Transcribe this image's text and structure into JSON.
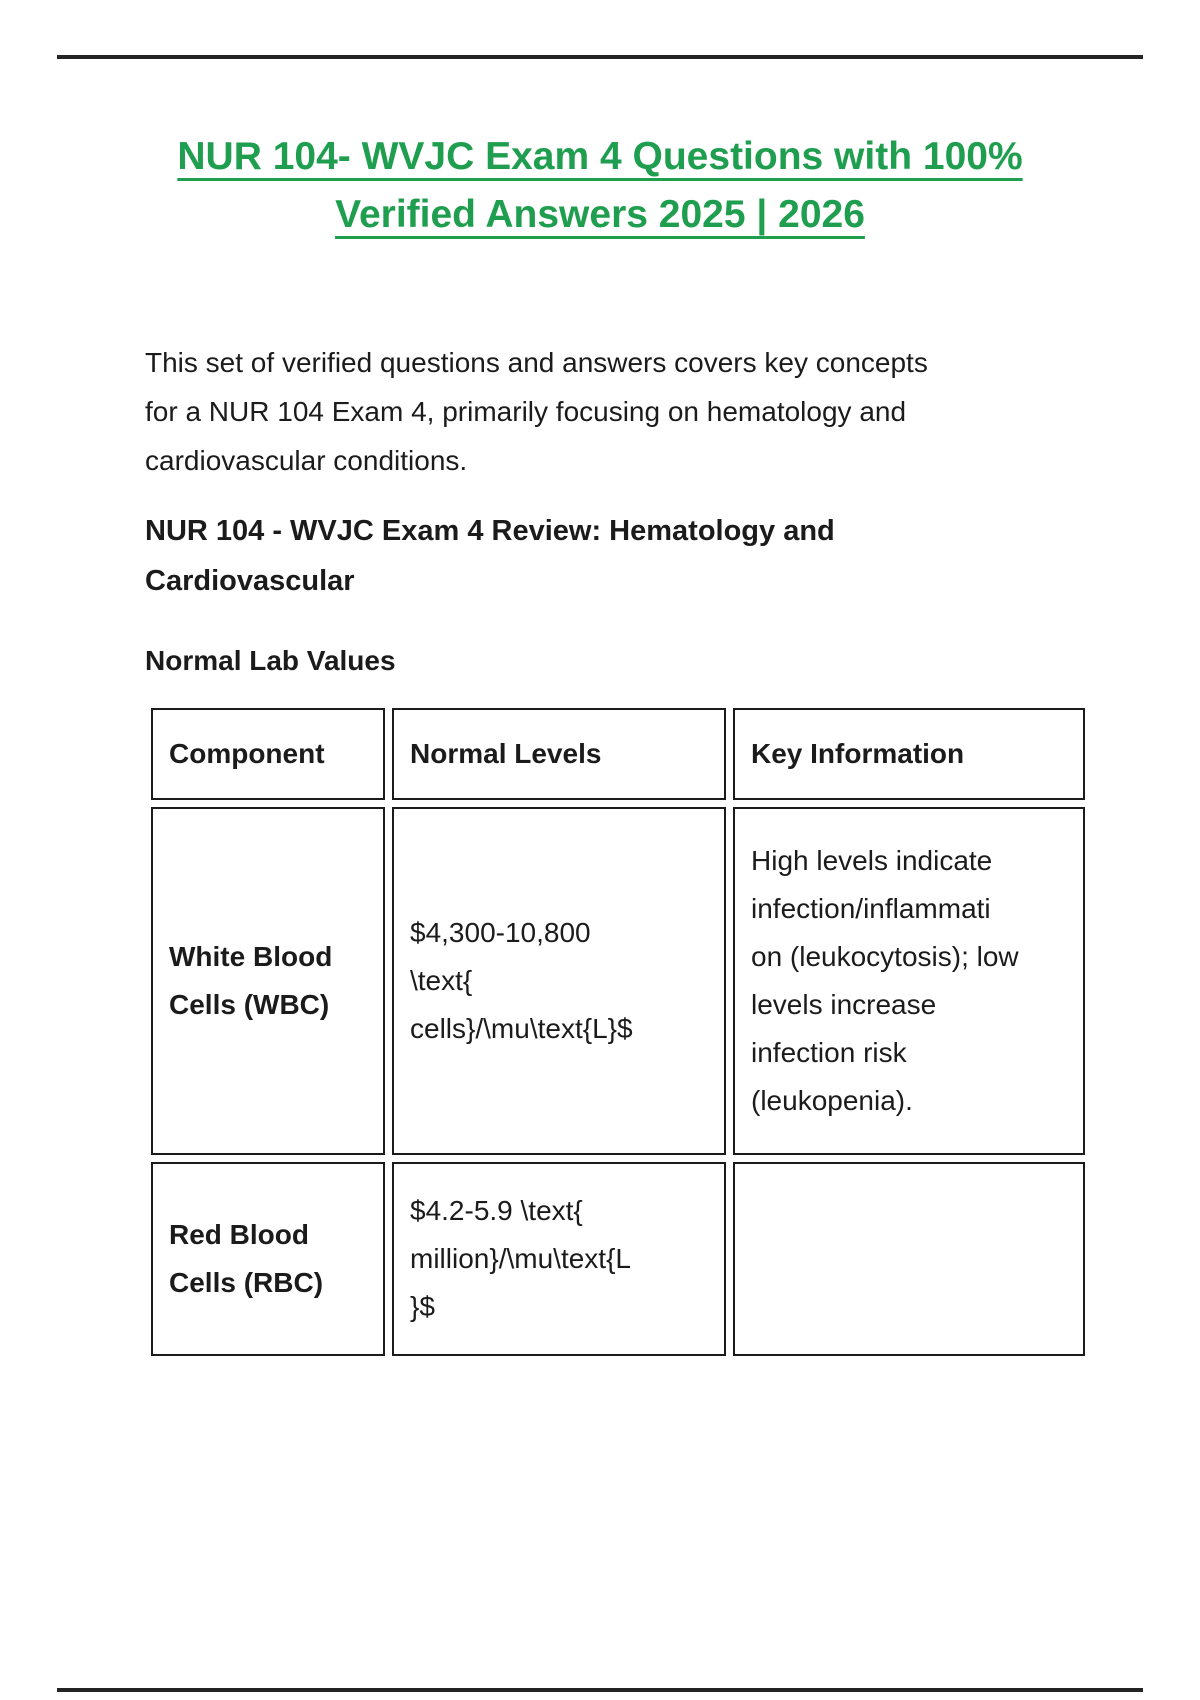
{
  "page": {
    "title": "NUR 104- WVJC Exam 4 Questions with 100%\nVerified Answers 2025 | 2026",
    "intro": "This set of verified questions and answers covers key concepts\nfor a NUR 104 Exam 4, primarily focusing on hematology and\ncardiovascular conditions.",
    "section_heading": "NUR 104 - WVJC Exam 4 Review: Hematology and\nCardiovascular",
    "subsection_heading": "Normal Lab Values"
  },
  "lab_table": {
    "headers": [
      "Component",
      "Normal Levels",
      "Key Information"
    ],
    "rows": [
      {
        "component": "White Blood\nCells (WBC)",
        "normal_levels": "$4,300-10,800\n\\text{\ncells}/\\mu\\text{L}$",
        "key_information": "High levels indicate\ninfection/inflammati\non (leukocytosis); low\nlevels increase\ninfection risk\n(leukopenia)."
      },
      {
        "component": "Red Blood\nCells (RBC)",
        "normal_levels": "$4.2-5.9 \\text{\nmillion}/\\mu\\text{L\n}$",
        "key_information": ""
      }
    ]
  },
  "colors": {
    "title_green": "#1e9e4e",
    "text": "#1b1b1b",
    "table_border": "#1b1b1b",
    "rule": "#242424"
  }
}
